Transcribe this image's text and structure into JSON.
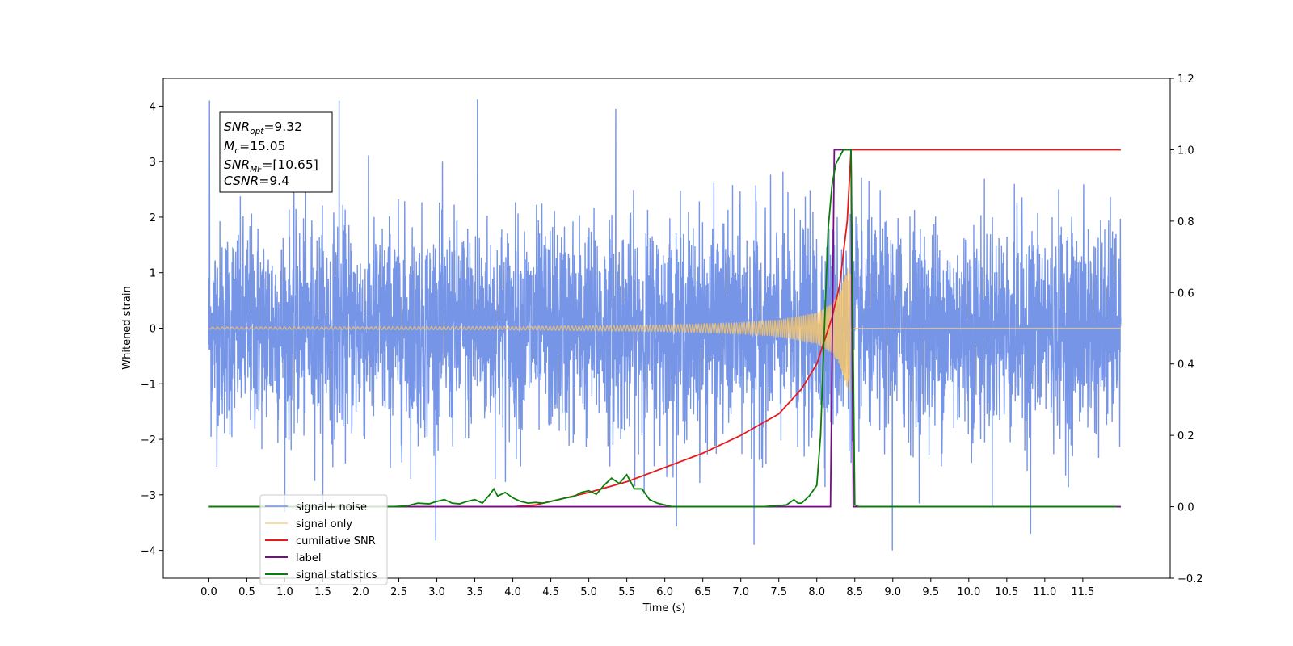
{
  "chart_data": {
    "type": "line",
    "xlabel": "Time (s)",
    "ylabel": "Whitened strain",
    "xlim": [
      -0.6,
      12.65
    ],
    "ylim": [
      -4.5,
      4.5
    ],
    "ylim_right": [
      -0.2,
      1.2
    ],
    "x_ticks": [
      "0.0",
      "0.5",
      "1.0",
      "1.5",
      "2.0",
      "2.5",
      "3.0",
      "3.5",
      "4.0",
      "4.5",
      "5.0",
      "5.5",
      "6.0",
      "6.5",
      "7.0",
      "7.5",
      "8.0",
      "8.5",
      "9.0",
      "9.5",
      "10.0",
      "10.5",
      "11.0",
      "11.5"
    ],
    "y_ticks_left": [
      "4",
      "3",
      "2",
      "1",
      "0",
      "−1",
      "−2",
      "−3",
      "−4"
    ],
    "y_ticks_right": [
      "1.2",
      "1.0",
      "0.8",
      "0.6",
      "0.4",
      "0.2",
      "0.0",
      "−0.2"
    ],
    "grid": false,
    "legend_placement": "lower-left",
    "stats_box": {
      "line1": {
        "base": "SNR",
        "sub": "opt",
        "value": "=9.32"
      },
      "line2": {
        "base": "M",
        "sub": "c",
        "value": "=15.05"
      },
      "line3": {
        "base": "SNR",
        "sub": "MF",
        "value": "=[10.65]"
      },
      "line4": {
        "base": "CSNR",
        "sub": "",
        "value": "=9.4"
      }
    },
    "series": [
      {
        "name": "signal+ noise",
        "color": "#6f8fe6",
        "axis": "left",
        "kind": "noise",
        "x_range": [
          0.0,
          12.0
        ],
        "amplitude_typical": 2.0,
        "peak_values": [
          4.1,
          4.12,
          3.95,
          -3.9,
          -4.0,
          -3.7
        ]
      },
      {
        "name": "signal only",
        "color": "#f5c56e",
        "axis": "left",
        "kind": "chirp",
        "x_range": [
          0.0,
          12.0
        ],
        "merger_time": 8.45,
        "envelope": {
          "x": [
            0.0,
            4.0,
            6.0,
            7.0,
            7.5,
            8.0,
            8.2,
            8.3,
            8.4,
            8.45,
            8.5,
            12.0
          ],
          "y": [
            0.02,
            0.03,
            0.06,
            0.1,
            0.15,
            0.28,
            0.45,
            0.65,
            1.1,
            1.2,
            0.02,
            0.0
          ]
        }
      },
      {
        "name": "cumilative SNR",
        "color": "#e8191a",
        "axis": "right",
        "x": [
          0.0,
          4.0,
          4.3,
          4.6,
          5.0,
          5.5,
          6.0,
          6.5,
          7.0,
          7.5,
          7.8,
          8.0,
          8.2,
          8.3,
          8.4,
          8.45,
          12.0
        ],
        "y": [
          0.0,
          0.0,
          0.005,
          0.02,
          0.04,
          0.07,
          0.11,
          0.15,
          0.2,
          0.26,
          0.33,
          0.4,
          0.53,
          0.62,
          0.8,
          1.0,
          1.0
        ]
      },
      {
        "name": "label",
        "color": "#7a0b8a",
        "axis": "right",
        "x": [
          0.0,
          8.18,
          8.23,
          8.45,
          8.48,
          12.0
        ],
        "y": [
          0.0,
          0.0,
          1.0,
          1.0,
          0.0,
          0.0
        ]
      },
      {
        "name": "signal statistics",
        "color": "#0b7d0b",
        "axis": "right",
        "x": [
          0.0,
          2.4,
          2.6,
          2.75,
          2.9,
          3.0,
          3.1,
          3.2,
          3.3,
          3.4,
          3.5,
          3.6,
          3.7,
          3.75,
          3.8,
          3.9,
          4.0,
          4.1,
          4.2,
          4.3,
          4.4,
          4.5,
          4.6,
          4.7,
          4.8,
          4.9,
          5.0,
          5.1,
          5.2,
          5.3,
          5.4,
          5.5,
          5.55,
          5.6,
          5.7,
          5.8,
          5.9,
          6.0,
          6.1,
          7.3,
          7.6,
          7.7,
          7.75,
          7.8,
          7.9,
          8.0,
          8.05,
          8.1,
          8.15,
          8.2,
          8.25,
          8.3,
          8.35,
          8.45,
          8.5,
          8.55,
          11.95
        ],
        "y": [
          0.0,
          0.0,
          0.002,
          0.01,
          0.008,
          0.015,
          0.02,
          0.01,
          0.008,
          0.015,
          0.02,
          0.01,
          0.035,
          0.05,
          0.03,
          0.04,
          0.025,
          0.015,
          0.01,
          0.012,
          0.01,
          0.015,
          0.02,
          0.025,
          0.028,
          0.04,
          0.045,
          0.035,
          0.06,
          0.08,
          0.065,
          0.09,
          0.07,
          0.05,
          0.05,
          0.02,
          0.01,
          0.005,
          0.0,
          0.0,
          0.005,
          0.02,
          0.01,
          0.01,
          0.03,
          0.06,
          0.2,
          0.5,
          0.78,
          0.9,
          0.96,
          0.98,
          1.0,
          1.0,
          0.005,
          0.0,
          0.0
        ]
      }
    ]
  }
}
